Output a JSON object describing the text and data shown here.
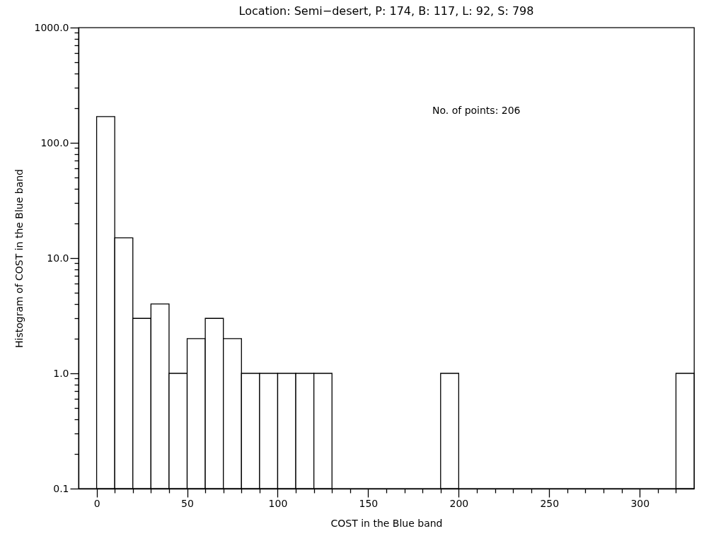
{
  "chart_data": {
    "type": "histogram",
    "title": "Location: Semi−desert, P: 174, B: 117, L: 92, S: 798",
    "xlabel": "COST in the Blue band",
    "ylabel": "Histogram of COST in the Blue band",
    "bins": [
      0,
      10,
      20,
      30,
      40,
      50,
      60,
      70,
      80,
      90,
      100,
      110,
      120,
      130,
      140,
      150,
      160,
      170,
      180,
      190,
      200,
      210,
      220,
      230,
      240,
      250,
      260,
      270,
      280,
      290,
      300,
      310,
      320,
      330
    ],
    "values": [
      169,
      15,
      3,
      4,
      1,
      2,
      3,
      2,
      1,
      1,
      1,
      1,
      1,
      null,
      null,
      null,
      null,
      null,
      null,
      1,
      null,
      null,
      null,
      null,
      null,
      null,
      null,
      null,
      null,
      null,
      null,
      null,
      1
    ],
    "color": "#ffffff",
    "log": true,
    "xlim": [
      -10,
      330
    ],
    "xticks": [
      0,
      {
        "value": 10,
        "label": null
      },
      {
        "value": 20,
        "label": null
      },
      {
        "value": 30,
        "label": null
      },
      {
        "value": 40,
        "label": null
      },
      50,
      {
        "value": 60,
        "label": null
      },
      {
        "value": 70,
        "label": null
      },
      {
        "value": 80,
        "label": null
      },
      {
        "value": 90,
        "label": null
      },
      100,
      {
        "value": 110,
        "label": null
      },
      {
        "value": 120,
        "label": null
      },
      {
        "value": 130,
        "label": null
      },
      {
        "value": 140,
        "label": null
      },
      150,
      {
        "value": 160,
        "label": null
      },
      {
        "value": 170,
        "label": null
      },
      {
        "value": 180,
        "label": null
      },
      {
        "value": 190,
        "label": null
      },
      200,
      {
        "value": 210,
        "label": null
      },
      {
        "value": 220,
        "label": null
      },
      {
        "value": 230,
        "label": null
      },
      {
        "value": 240,
        "label": null
      },
      250,
      {
        "value": 260,
        "label": null
      },
      {
        "value": 270,
        "label": null
      },
      {
        "value": 280,
        "label": null
      },
      {
        "value": 290,
        "label": null
      },
      300,
      {
        "value": 310,
        "label": null
      },
      {
        "value": 320,
        "label": null
      }
    ],
    "ylim": [
      0.1,
      1000
    ],
    "yticks": [
      0.1,
      {
        "value": 0.2,
        "label": null
      },
      {
        "value": 0.3,
        "label": null
      },
      {
        "value": 0.4,
        "label": null
      },
      {
        "value": 0.5,
        "label": null
      },
      {
        "value": 0.6,
        "label": null
      },
      {
        "value": 0.7,
        "label": null
      },
      {
        "value": 0.8,
        "label": null
      },
      {
        "value": 0.9,
        "label": null
      },
      {
        "value": 1,
        "label": "1.0"
      },
      {
        "value": 2,
        "label": null
      },
      {
        "value": 3,
        "label": null
      },
      {
        "value": 4,
        "label": null
      },
      {
        "value": 5,
        "label": null
      },
      {
        "value": 6,
        "label": null
      },
      {
        "value": 7,
        "label": null
      },
      {
        "value": 8,
        "label": null
      },
      {
        "value": 9,
        "label": null
      },
      {
        "value": 10,
        "label": "10.0"
      },
      {
        "value": 20,
        "label": null
      },
      {
        "value": 30,
        "label": null
      },
      {
        "value": 40,
        "label": null
      },
      {
        "value": 50,
        "label": null
      },
      {
        "value": 60,
        "label": null
      },
      {
        "value": 70,
        "label": null
      },
      {
        "value": 80,
        "label": null
      },
      {
        "value": 90,
        "label": null
      },
      {
        "value": 100,
        "label": "100.0"
      },
      {
        "value": 200,
        "label": null
      },
      {
        "value": 300,
        "label": null
      },
      {
        "value": 400,
        "label": null
      },
      {
        "value": 500,
        "label": null
      },
      {
        "value": 600,
        "label": null
      },
      {
        "value": 700,
        "label": null
      },
      {
        "value": 800,
        "label": null
      },
      {
        "value": 900,
        "label": null
      },
      {
        "value": 1000,
        "label": "1000.0"
      }
    ],
    "grid": false,
    "annotations": [
      "No. of points: 206"
    ]
  }
}
